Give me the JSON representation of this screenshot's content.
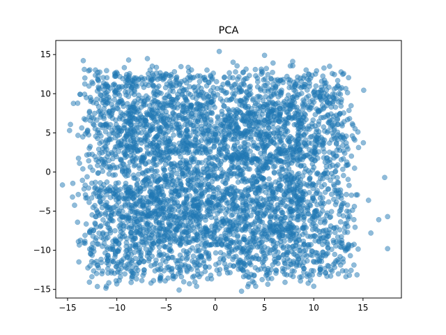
{
  "chart_data": {
    "type": "scatter",
    "title": "PCA",
    "xlabel": "",
    "ylabel": "",
    "xlim": [
      -16.2,
      18.9
    ],
    "ylim": [
      -16.1,
      16.8
    ],
    "xticks": [
      -15,
      -10,
      -5,
      0,
      5,
      10,
      15
    ],
    "yticks": [
      -15,
      -10,
      -5,
      0,
      5,
      10,
      15
    ],
    "grid": false,
    "color": "#1f77b4",
    "alpha": 0.5,
    "n_points_approx": 20000,
    "distribution": "Dense, roughly square cloud of points spanning x ≈ -15 to 17.5 and y ≈ -14.5 to 15.5; densely filled for x in [-12, 14] and y in [-12, 12], with notches near y ≈ 0 on the left and right edges and near x ≈ 0 on the top and bottom edges, where the edge of the cloud falls back by about 1–2 units.",
    "outliers": [
      {
        "x": -14.8,
        "y": 5.3
      },
      {
        "x": -14.5,
        "y": -3.2
      },
      {
        "x": -13.9,
        "y": -8.9
      },
      {
        "x": -13.3,
        "y": 13.1
      },
      {
        "x": -10.0,
        "y": -14.3
      },
      {
        "x": -8.8,
        "y": 14.3
      },
      {
        "x": -1.9,
        "y": -14.6
      },
      {
        "x": 0.4,
        "y": 15.4
      },
      {
        "x": 4.1,
        "y": -14.6
      },
      {
        "x": 5.0,
        "y": 14.9
      },
      {
        "x": 10.0,
        "y": -14.6
      },
      {
        "x": 15.8,
        "y": -7.8
      },
      {
        "x": 16.6,
        "y": -6.1
      },
      {
        "x": 17.2,
        "y": -0.7
      },
      {
        "x": 17.5,
        "y": -9.8
      },
      {
        "x": 17.5,
        "y": -5.7
      }
    ]
  }
}
